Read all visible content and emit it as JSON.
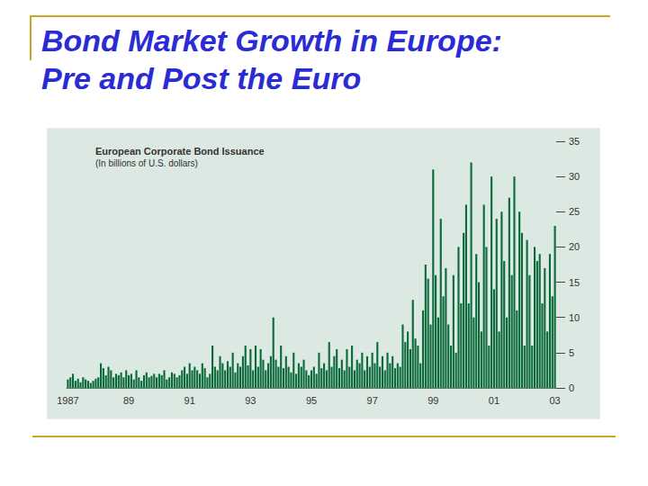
{
  "slide_title": [
    "Bond Market Growth in Europe:",
    "Pre and Post the Euro"
  ],
  "chart_data": {
    "type": "bar",
    "title": "European Corporate Bond Issuance",
    "subtitle": "(In billions of U.S. dollars)",
    "categories": [
      "1987",
      null,
      null,
      null,
      null,
      null,
      null,
      null,
      null,
      null,
      null,
      null,
      null,
      null,
      null,
      null,
      null,
      null,
      null,
      null,
      null,
      null,
      null,
      null,
      "89",
      null,
      null,
      null,
      null,
      null,
      null,
      null,
      null,
      null,
      null,
      null,
      null,
      null,
      null,
      null,
      null,
      null,
      null,
      null,
      null,
      null,
      null,
      null,
      "91",
      null,
      null,
      null,
      null,
      null,
      null,
      null,
      null,
      null,
      null,
      null,
      null,
      null,
      null,
      null,
      null,
      null,
      null,
      null,
      null,
      null,
      null,
      null,
      "93",
      null,
      null,
      null,
      null,
      null,
      null,
      null,
      null,
      null,
      null,
      null,
      null,
      null,
      null,
      null,
      null,
      null,
      null,
      null,
      null,
      null,
      null,
      null,
      "95",
      null,
      null,
      null,
      null,
      null,
      null,
      null,
      null,
      null,
      null,
      null,
      null,
      null,
      null,
      null,
      null,
      null,
      null,
      null,
      null,
      null,
      null,
      null,
      "97",
      null,
      null,
      null,
      null,
      null,
      null,
      null,
      null,
      null,
      null,
      null,
      null,
      null,
      null,
      null,
      null,
      null,
      null,
      null,
      null,
      null,
      null,
      null,
      "99",
      null,
      null,
      null,
      null,
      null,
      null,
      null,
      null,
      null,
      null,
      null,
      null,
      null,
      null,
      null,
      null,
      null,
      null,
      null,
      null,
      null,
      null,
      null,
      "01",
      null,
      null,
      null,
      null,
      null,
      null,
      null,
      null,
      null,
      null,
      null,
      null,
      null,
      null,
      null,
      null,
      null,
      null,
      null,
      null,
      null,
      null,
      null,
      "03"
    ],
    "values": [
      1.2,
      1.5,
      2.0,
      1.0,
      1.3,
      0.8,
      1.5,
      1.2,
      1.0,
      0.7,
      1.0,
      1.3,
      1.5,
      3.5,
      2.8,
      1.8,
      3.0,
      2.5,
      1.5,
      2.0,
      1.8,
      2.2,
      1.5,
      2.5,
      1.8,
      2.0,
      1.2,
      2.5,
      1.5,
      1.0,
      1.8,
      2.2,
      1.5,
      1.7,
      2.0,
      1.5,
      2.0,
      1.8,
      2.5,
      1.2,
      1.5,
      2.2,
      2.0,
      1.5,
      1.8,
      2.5,
      3.0,
      2.0,
      3.5,
      2.5,
      3.0,
      2.5,
      2.0,
      3.5,
      2.8,
      1.5,
      2.0,
      6.0,
      3.0,
      2.5,
      4.5,
      3.5,
      2.5,
      3.8,
      3.0,
      5.0,
      2.2,
      3.5,
      3.0,
      4.5,
      6.0,
      3.2,
      5.5,
      2.5,
      6.0,
      3.0,
      5.5,
      4.0,
      2.5,
      3.5,
      4.5,
      10.0,
      4.0,
      3.0,
      6.0,
      2.8,
      4.5,
      3.0,
      2.2,
      5.0,
      2.0,
      3.5,
      3.0,
      4.0,
      2.5,
      1.8,
      2.5,
      3.0,
      2.0,
      5.0,
      2.8,
      3.5,
      2.5,
      6.5,
      3.0,
      4.5,
      5.5,
      2.8,
      4.0,
      2.5,
      5.5,
      3.0,
      6.0,
      2.5,
      4.0,
      3.5,
      5.0,
      2.5,
      4.5,
      3.0,
      5.0,
      3.5,
      6.5,
      3.0,
      4.5,
      2.5,
      5.0,
      3.5,
      4.5,
      2.8,
      3.5,
      3.0,
      9.0,
      6.5,
      8.0,
      5.5,
      12.5,
      7.0,
      6.0,
      3.5,
      11.0,
      17.5,
      15.5,
      9.0,
      31.0,
      16.0,
      10.0,
      24.0,
      13.0,
      17.0,
      9.0,
      6.0,
      16.0,
      5.0,
      20.0,
      12.0,
      22.0,
      26.0,
      12.0,
      32.0,
      10.0,
      19.0,
      15.0,
      8.0,
      26.0,
      20.0,
      6.0,
      30.0,
      14.0,
      24.0,
      8.0,
      25.0,
      18.0,
      10.0,
      27.0,
      16.0,
      30.0,
      11.0,
      25.0,
      22.0,
      6.0,
      21.0,
      16.0,
      6.0,
      20.0,
      18.0,
      19.0,
      12.0,
      17.0,
      8.0,
      19.0,
      13.0,
      23.0
    ],
    "color": "#0a6a3a",
    "ylim": [
      0,
      35
    ],
    "yticks": [
      0,
      5,
      10,
      15,
      20,
      25,
      30,
      35
    ],
    "grid": false
  }
}
